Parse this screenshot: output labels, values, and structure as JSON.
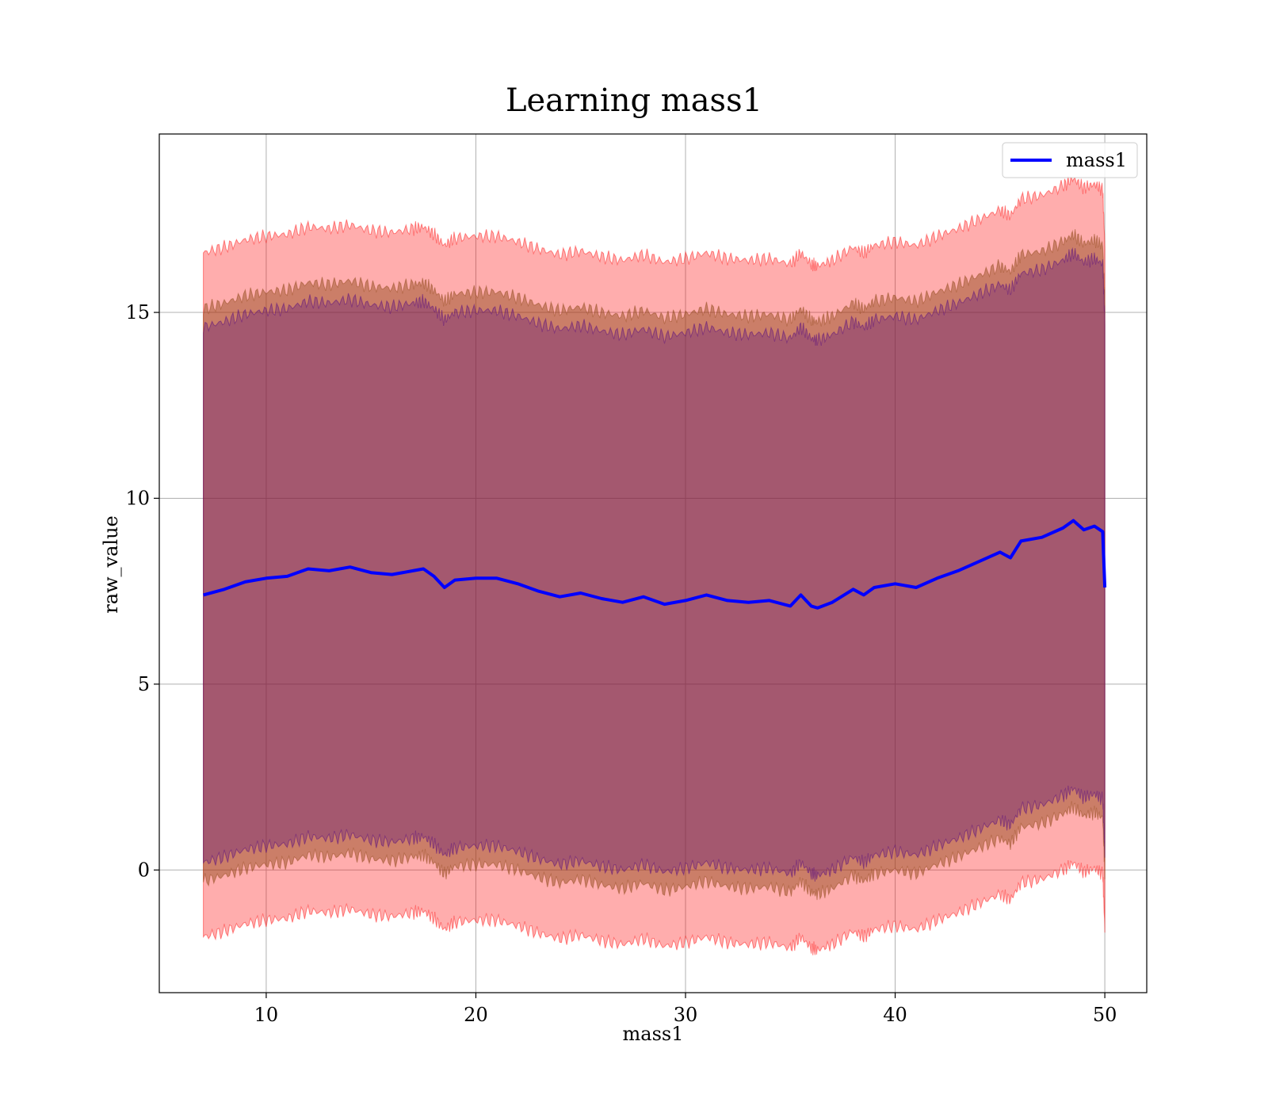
{
  "chart_data": {
    "type": "area",
    "title": "Learning mass1",
    "xlabel": "mass1",
    "ylabel": "raw_value",
    "xlim": [
      4.9,
      52.0
    ],
    "ylim": [
      -3.3,
      19.8
    ],
    "x_ticks": [
      10,
      20,
      30,
      40,
      50
    ],
    "y_ticks": [
      0,
      5,
      10,
      15
    ],
    "grid": true,
    "legend": {
      "placement": "top-right",
      "entries": [
        {
          "label": "mass1",
          "color": "#0000ff"
        }
      ]
    },
    "x": [
      7.0,
      8.0,
      9.0,
      10.0,
      11.0,
      12.0,
      13.0,
      14.0,
      15.0,
      16.0,
      17.0,
      17.5,
      18.0,
      18.5,
      19.0,
      20.0,
      21.0,
      22.0,
      23.0,
      24.0,
      25.0,
      26.0,
      27.0,
      28.0,
      29.0,
      30.0,
      31.0,
      32.0,
      33.0,
      34.0,
      35.0,
      35.5,
      36.0,
      36.3,
      37.0,
      38.0,
      38.5,
      39.0,
      40.0,
      41.0,
      42.0,
      43.0,
      44.0,
      45.0,
      45.5,
      46.0,
      47.0,
      48.0,
      48.5,
      49.0,
      49.5,
      49.9,
      50.0
    ],
    "series": [
      {
        "name": "mass1",
        "color": "#0000ff",
        "values": [
          7.4,
          7.55,
          7.75,
          7.85,
          7.9,
          8.1,
          8.05,
          8.15,
          8.0,
          7.95,
          8.05,
          8.1,
          7.9,
          7.6,
          7.8,
          7.85,
          7.85,
          7.7,
          7.5,
          7.35,
          7.45,
          7.3,
          7.2,
          7.35,
          7.15,
          7.25,
          7.4,
          7.25,
          7.2,
          7.25,
          7.1,
          7.4,
          7.1,
          7.05,
          7.2,
          7.55,
          7.4,
          7.6,
          7.7,
          7.6,
          7.85,
          8.05,
          8.3,
          8.55,
          8.4,
          8.85,
          8.95,
          9.2,
          9.4,
          9.15,
          9.25,
          9.1,
          7.6
        ]
      }
    ],
    "bands": [
      {
        "color": "#ff0000",
        "opacity": 0.32,
        "offset": 9.2
      },
      {
        "color": "#8b4513",
        "opacity": 0.45,
        "offset": 7.7
      },
      {
        "color": "#4b0082",
        "opacity": 0.3,
        "offset": 7.2
      }
    ]
  }
}
